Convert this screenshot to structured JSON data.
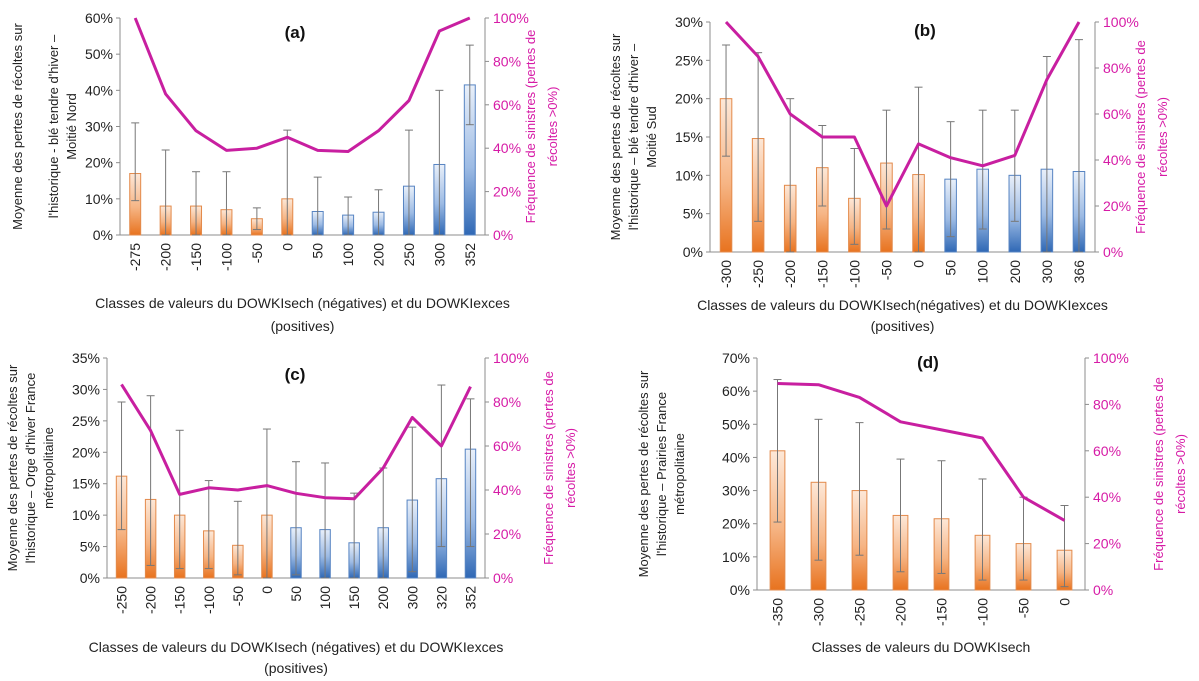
{
  "colors": {
    "negative_bar": "#f09a55",
    "positive_bar": "#5d8fcc",
    "frequency_line": "#c81fa0",
    "axis_text": "#222222",
    "right_axis_text": "#d61aa6"
  },
  "chart_data": [
    {
      "type": "bar",
      "title": "(a)",
      "ylabel": [
        "Moyenne des pertes de récoltes sur",
        "l'historique - blé tendre d'hiver –",
        "Moitié Nord"
      ],
      "y2label": [
        "Fréquence de sinistres (pertes de",
        "récoltes >0%)"
      ],
      "xlabel": [
        "Classes de valeurs du DOWKIsech (négatives) et du DOWKIexces",
        "(positives)"
      ],
      "categories": [
        "-275",
        "-200",
        "-150",
        "-100",
        "-50",
        "0",
        "50",
        "100",
        "200",
        "250",
        "300",
        "352"
      ],
      "series": [
        {
          "values": [
            17,
            8,
            8,
            7,
            4.5,
            10,
            6.5,
            5.5,
            6.3,
            13.5,
            19.5,
            41.5
          ],
          "error_upper": [
            31,
            23.5,
            17.5,
            17.5,
            7.5,
            29,
            16,
            10.5,
            12.5,
            29,
            40,
            52.5
          ],
          "error_lower": [
            9.5,
            0,
            0,
            0,
            1.5,
            0,
            0,
            0,
            0,
            0,
            0,
            30.5
          ],
          "axis": "left"
        },
        {
          "values": [
            100,
            65,
            48,
            39,
            40,
            45,
            39,
            38.5,
            48,
            62,
            94,
            100
          ],
          "axis": "right",
          "type": "line"
        }
      ],
      "sign_split": [
        "neg",
        "neg",
        "neg",
        "neg",
        "neg",
        "neg",
        "pos",
        "pos",
        "pos",
        "pos",
        "pos",
        "pos"
      ],
      "ylim": [
        0,
        60
      ],
      "y_ticks": [
        "0%",
        "10%",
        "20%",
        "30%",
        "40%",
        "50%",
        "60%"
      ],
      "y2lim": [
        0,
        100
      ],
      "y2_ticks": [
        "0%",
        "20%",
        "40%",
        "60%",
        "80%",
        "100%"
      ],
      "grid": false
    },
    {
      "type": "bar",
      "title": "(b)",
      "ylabel": [
        "Moyenne des pertes de récoltes sur",
        "l'historique – blé tendre d'hiver –",
        "Moitié Sud"
      ],
      "y2label": [
        "Fréquence de sinistres (pertes de",
        "récoltes >0%)"
      ],
      "xlabel": [
        "Classes de valeurs du DOWKIsech(négatives) et du DOWKIexces",
        "(positives)"
      ],
      "categories": [
        "-300",
        "-250",
        "-200",
        "-150",
        "-100",
        "-50",
        "0",
        "50",
        "100",
        "200",
        "300",
        "366"
      ],
      "series": [
        {
          "values": [
            20,
            14.8,
            8.7,
            11,
            7,
            11.6,
            10.1,
            9.5,
            10.8,
            10,
            10.8,
            10.5
          ],
          "error_upper": [
            27,
            26,
            20,
            16.5,
            13.5,
            18.5,
            21.5,
            17,
            18.5,
            18.5,
            25.5,
            27.7
          ],
          "error_lower": [
            12.5,
            4,
            0,
            6,
            1,
            3,
            0,
            2,
            3,
            4,
            0,
            0
          ],
          "axis": "left"
        },
        {
          "values": [
            100,
            85,
            60,
            50,
            50,
            20,
            47,
            41,
            37.5,
            42,
            75,
            100
          ],
          "axis": "right",
          "type": "line"
        }
      ],
      "sign_split": [
        "neg",
        "neg",
        "neg",
        "neg",
        "neg",
        "neg",
        "neg",
        "pos",
        "pos",
        "pos",
        "pos",
        "pos"
      ],
      "ylim": [
        0,
        30
      ],
      "y_ticks": [
        "0%",
        "5%",
        "10%",
        "15%",
        "20%",
        "25%",
        "30%"
      ],
      "y2lim": [
        0,
        100
      ],
      "y2_ticks": [
        "0%",
        "20%",
        "40%",
        "60%",
        "80%",
        "100%"
      ],
      "grid": false
    },
    {
      "type": "bar",
      "title": "(c)",
      "ylabel": [
        "Moyenne des pertes de récoltes sur",
        "l'historique – Orge d'hiver France",
        "métropolitaine"
      ],
      "y2label": [
        "Fréquence de sinistres (pertes de",
        "récoltes >0%)"
      ],
      "xlabel": [
        "Classes de valeurs du DOWKIsech (négatives) et du DOWKIexces",
        "(positives)"
      ],
      "categories": [
        "-250",
        "-200",
        "-150",
        "-100",
        "-50",
        "0",
        "50",
        "100",
        "150",
        "200",
        "300",
        "320",
        "352"
      ],
      "series": [
        {
          "values": [
            16.2,
            12.5,
            10,
            7.5,
            5.2,
            10,
            8,
            7.7,
            5.6,
            8,
            12.4,
            15.8,
            20.5
          ],
          "error_upper": [
            28,
            29,
            23.5,
            15.5,
            12.2,
            23.7,
            18.5,
            18.3,
            13.5,
            17.5,
            24,
            30.7,
            28.5
          ],
          "error_lower": [
            7.7,
            2,
            1.5,
            1.5,
            0.5,
            0,
            0.5,
            0,
            0,
            0,
            1,
            5,
            5
          ],
          "axis": "left"
        },
        {
          "values": [
            88,
            67,
            38,
            41,
            40,
            42,
            38.5,
            36.5,
            36,
            50,
            73,
            60,
            87
          ],
          "axis": "right",
          "type": "line"
        }
      ],
      "sign_split": [
        "neg",
        "neg",
        "neg",
        "neg",
        "neg",
        "neg",
        "pos",
        "pos",
        "pos",
        "pos",
        "pos",
        "pos",
        "pos"
      ],
      "ylim": [
        0,
        35
      ],
      "y_ticks": [
        "0%",
        "5%",
        "10%",
        "15%",
        "20%",
        "25%",
        "30%",
        "35%"
      ],
      "y2lim": [
        0,
        100
      ],
      "y2_ticks": [
        "0%",
        "20%",
        "40%",
        "60%",
        "80%",
        "100%"
      ],
      "grid": false
    },
    {
      "type": "bar",
      "title": "(d)",
      "ylabel": [
        "Moyenne des pertes de récoltes sur",
        "l'historique – Prairies France",
        "métropolitaine"
      ],
      "y2label": [
        "Fréquence de sinistres (pertes de",
        "récoltes >0%)"
      ],
      "xlabel": [
        "Classes de valeurs du DOWKIsech"
      ],
      "categories": [
        "-350",
        "-300",
        "-250",
        "-200",
        "-150",
        "-100",
        "-50",
        "0"
      ],
      "series": [
        {
          "values": [
            42,
            32.5,
            30,
            22.5,
            21.5,
            16.5,
            14,
            12
          ],
          "error_upper": [
            63.5,
            51.5,
            50.5,
            39.5,
            39,
            33.5,
            28,
            25.5
          ],
          "error_lower": [
            20.5,
            9,
            10.5,
            5.5,
            5,
            3,
            3,
            1
          ],
          "axis": "left"
        },
        {
          "values": [
            89,
            88.5,
            83,
            72.5,
            69,
            65.5,
            40,
            30
          ],
          "axis": "right",
          "type": "line"
        }
      ],
      "sign_split": [
        "neg",
        "neg",
        "neg",
        "neg",
        "neg",
        "neg",
        "neg",
        "neg"
      ],
      "ylim": [
        0,
        70
      ],
      "y_ticks": [
        "0%",
        "10%",
        "20%",
        "30%",
        "40%",
        "50%",
        "60%",
        "70%"
      ],
      "y2lim": [
        0,
        100
      ],
      "y2_ticks": [
        "0%",
        "20%",
        "40%",
        "60%",
        "80%",
        "100%"
      ],
      "grid": false
    }
  ]
}
